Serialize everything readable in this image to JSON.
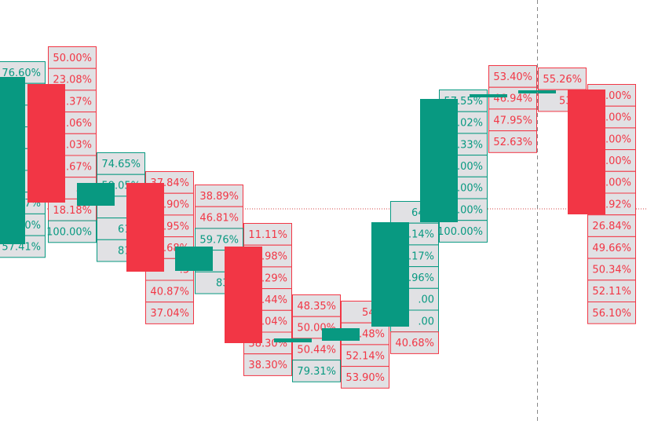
{
  "chart_data": {
    "type": "candlestick",
    "colors": {
      "up": "#089981",
      "down": "#f23645",
      "label_bg": "#e1e1e4",
      "crosshair": "#888888",
      "hline": "#d64545"
    },
    "ylim": [
      0,
      540
    ],
    "crosshair_price": 266,
    "candles": [
      {
        "open": 311,
        "close": 98,
        "dir": "up",
        "labels": [
          {
            "text": "76.60%",
            "dir": "up"
          },
          {
            "text": ".0",
            "dir": "up"
          },
          {
            "text": ".0",
            "dir": "up"
          },
          {
            "text": ".0",
            "dir": "up"
          },
          {
            "text": ".0",
            "dir": "up"
          },
          {
            "text": ".0",
            "dir": "up"
          },
          {
            "text": ".67%",
            "dir": "up"
          },
          {
            "text": "62.30%",
            "dir": "up"
          },
          {
            "text": "57.41%",
            "dir": "up"
          }
        ]
      },
      {
        "open": 107,
        "close": 258,
        "dir": "down",
        "labels": [
          {
            "text": "50.00%",
            "dir": "down"
          },
          {
            "text": "23.08%",
            "dir": "down"
          },
          {
            "text": ".37%",
            "dir": "down"
          },
          {
            "text": ".06%",
            "dir": "down"
          },
          {
            "text": ".03%",
            "dir": "down"
          },
          {
            "text": ".67%",
            "dir": "down"
          },
          {
            "text": ".00",
            "dir": "down"
          },
          {
            "text": "18.18%",
            "dir": "down"
          },
          {
            "text": "100.00%",
            "dir": "up"
          }
        ]
      },
      {
        "open": 262,
        "close": 233,
        "dir": "up",
        "labels": [
          {
            "text": "74.65%",
            "dir": "up"
          },
          {
            "text": "59.05%",
            "dir": "up"
          },
          {
            "text": ".7",
            "dir": "up"
          },
          {
            "text": "61.9",
            "dir": "up"
          },
          {
            "text": "81.8",
            "dir": "up"
          }
        ]
      },
      {
        "open": 233,
        "close": 346,
        "dir": "down",
        "labels": [
          {
            "text": "37.84%",
            "dir": "down"
          },
          {
            "text": ".90%",
            "dir": "down"
          },
          {
            "text": ".95%",
            "dir": "down"
          },
          {
            "text": ".68%",
            "dir": "down"
          },
          {
            "text": ".3",
            "dir": "down"
          },
          {
            "text": "40.87%",
            "dir": "down"
          },
          {
            "text": "37.04%",
            "dir": "down"
          }
        ]
      },
      {
        "open": 345,
        "close": 314,
        "dir": "up",
        "labels": [
          {
            "text": "38.89%",
            "dir": "down"
          },
          {
            "text": "46.81%",
            "dir": "down"
          },
          {
            "text": "59.76%",
            "dir": "up"
          },
          {
            "text": ".9",
            "dir": "up"
          },
          {
            "text": "83.3",
            "dir": "up"
          }
        ]
      },
      {
        "open": 314,
        "close": 437,
        "dir": "down",
        "labels": [
          {
            "text": "11.11%",
            "dir": "down"
          },
          {
            "text": ".98%",
            "dir": "down"
          },
          {
            "text": ".29%",
            "dir": "down"
          },
          {
            "text": ".44%",
            "dir": "down"
          },
          {
            "text": ".04%",
            "dir": "down"
          },
          {
            "text": "38.30%",
            "dir": "down"
          },
          {
            "text": "38.30%",
            "dir": "down"
          }
        ]
      },
      {
        "open": 436,
        "close": 431,
        "dir": "up",
        "labels": [
          {
            "text": "48.35%",
            "dir": "down"
          },
          {
            "text": "50.00%",
            "dir": "down"
          },
          {
            "text": "50.44%",
            "dir": "down"
          },
          {
            "text": "79.31%",
            "dir": "up"
          }
        ]
      },
      {
        "open": 434,
        "close": 418,
        "dir": "up",
        "labels": [
          {
            "text": "54.2",
            "dir": "down"
          },
          {
            "text": ".48%",
            "dir": "down"
          },
          {
            "text": "52.14%",
            "dir": "down"
          },
          {
            "text": "53.90%",
            "dir": "down"
          }
        ]
      },
      {
        "open": 416,
        "close": 283,
        "dir": "up",
        "labels": [
          {
            "text": "64.0",
            "dir": "up"
          },
          {
            "text": ".14%",
            "dir": "up"
          },
          {
            "text": ".17%",
            "dir": "up"
          },
          {
            "text": ".96%",
            "dir": "up"
          },
          {
            "text": ".00",
            "dir": "up"
          },
          {
            "text": ".00",
            "dir": "up"
          },
          {
            "text": "40.68%",
            "dir": "down"
          }
        ]
      },
      {
        "open": 283,
        "close": 126,
        "dir": "up",
        "labels": [
          {
            "text": "57.55%",
            "dir": "up"
          },
          {
            "text": ".02%",
            "dir": "up"
          },
          {
            "text": ".33%",
            "dir": "up"
          },
          {
            "text": ".00%",
            "dir": "up"
          },
          {
            "text": ".00%",
            "dir": "up"
          },
          {
            "text": ".00%",
            "dir": "up"
          },
          {
            "text": "100.00%",
            "dir": "up"
          }
        ]
      },
      {
        "open": 124,
        "close": 120,
        "dir": "up",
        "labels": [
          {
            "text": "53.40%",
            "dir": "down"
          },
          {
            "text": "46.94%",
            "dir": "down"
          },
          {
            "text": "47.95%",
            "dir": "down"
          },
          {
            "text": "52.63%",
            "dir": "down"
          }
        ]
      },
      {
        "open": 119,
        "close": 115,
        "dir": "up",
        "labels": [
          {
            "text": "55.26%",
            "dir": "down"
          },
          {
            "text": "53.8",
            "dir": "down"
          }
        ]
      },
      {
        "open": 114,
        "close": 273,
        "dir": "down",
        "labels": [
          {
            "text": ".00%",
            "dir": "down"
          },
          {
            "text": ".00%",
            "dir": "down"
          },
          {
            "text": ".00%",
            "dir": "down"
          },
          {
            "text": ".00%",
            "dir": "down"
          },
          {
            "text": ".00%",
            "dir": "down"
          },
          {
            "text": ".92%",
            "dir": "down"
          },
          {
            "text": "26.84%",
            "dir": "down"
          },
          {
            "text": "49.66%",
            "dir": "down"
          },
          {
            "text": "50.34%",
            "dir": "down"
          },
          {
            "text": "52.11%",
            "dir": "down"
          },
          {
            "text": "56.10%",
            "dir": "down"
          }
        ]
      }
    ]
  }
}
